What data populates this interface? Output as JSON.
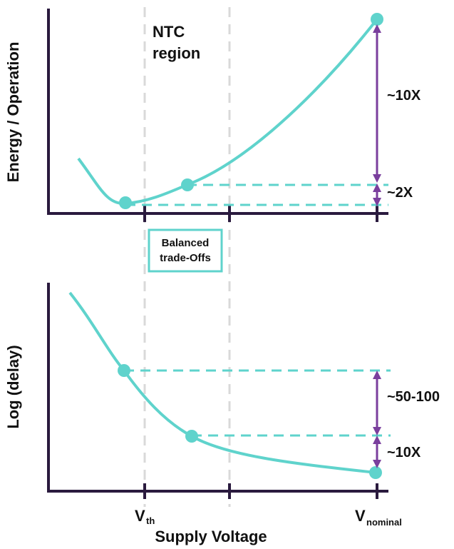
{
  "colors": {
    "axis": "#2a1a3e",
    "curve": "#5fd3cc",
    "arrow": "#7a3f9d",
    "guide": "#d9d9d9",
    "text": "#111111"
  },
  "top_panel": {
    "ylabel": "Energy / Operation",
    "region_label_line1": "NTC",
    "region_label_line2": "region",
    "ratio_large": "~10X",
    "ratio_small": "~2X"
  },
  "box": {
    "line1": "Balanced",
    "line2": "trade-Offs"
  },
  "bottom_panel": {
    "ylabel": "Log (delay)",
    "ratio_large": "~50-100",
    "ratio_small": "~10X"
  },
  "xaxis": {
    "title": "Supply Voltage",
    "vth_main": "V",
    "vth_sub": "th",
    "vnom_main": "V",
    "vnom_sub": "nominal"
  }
}
